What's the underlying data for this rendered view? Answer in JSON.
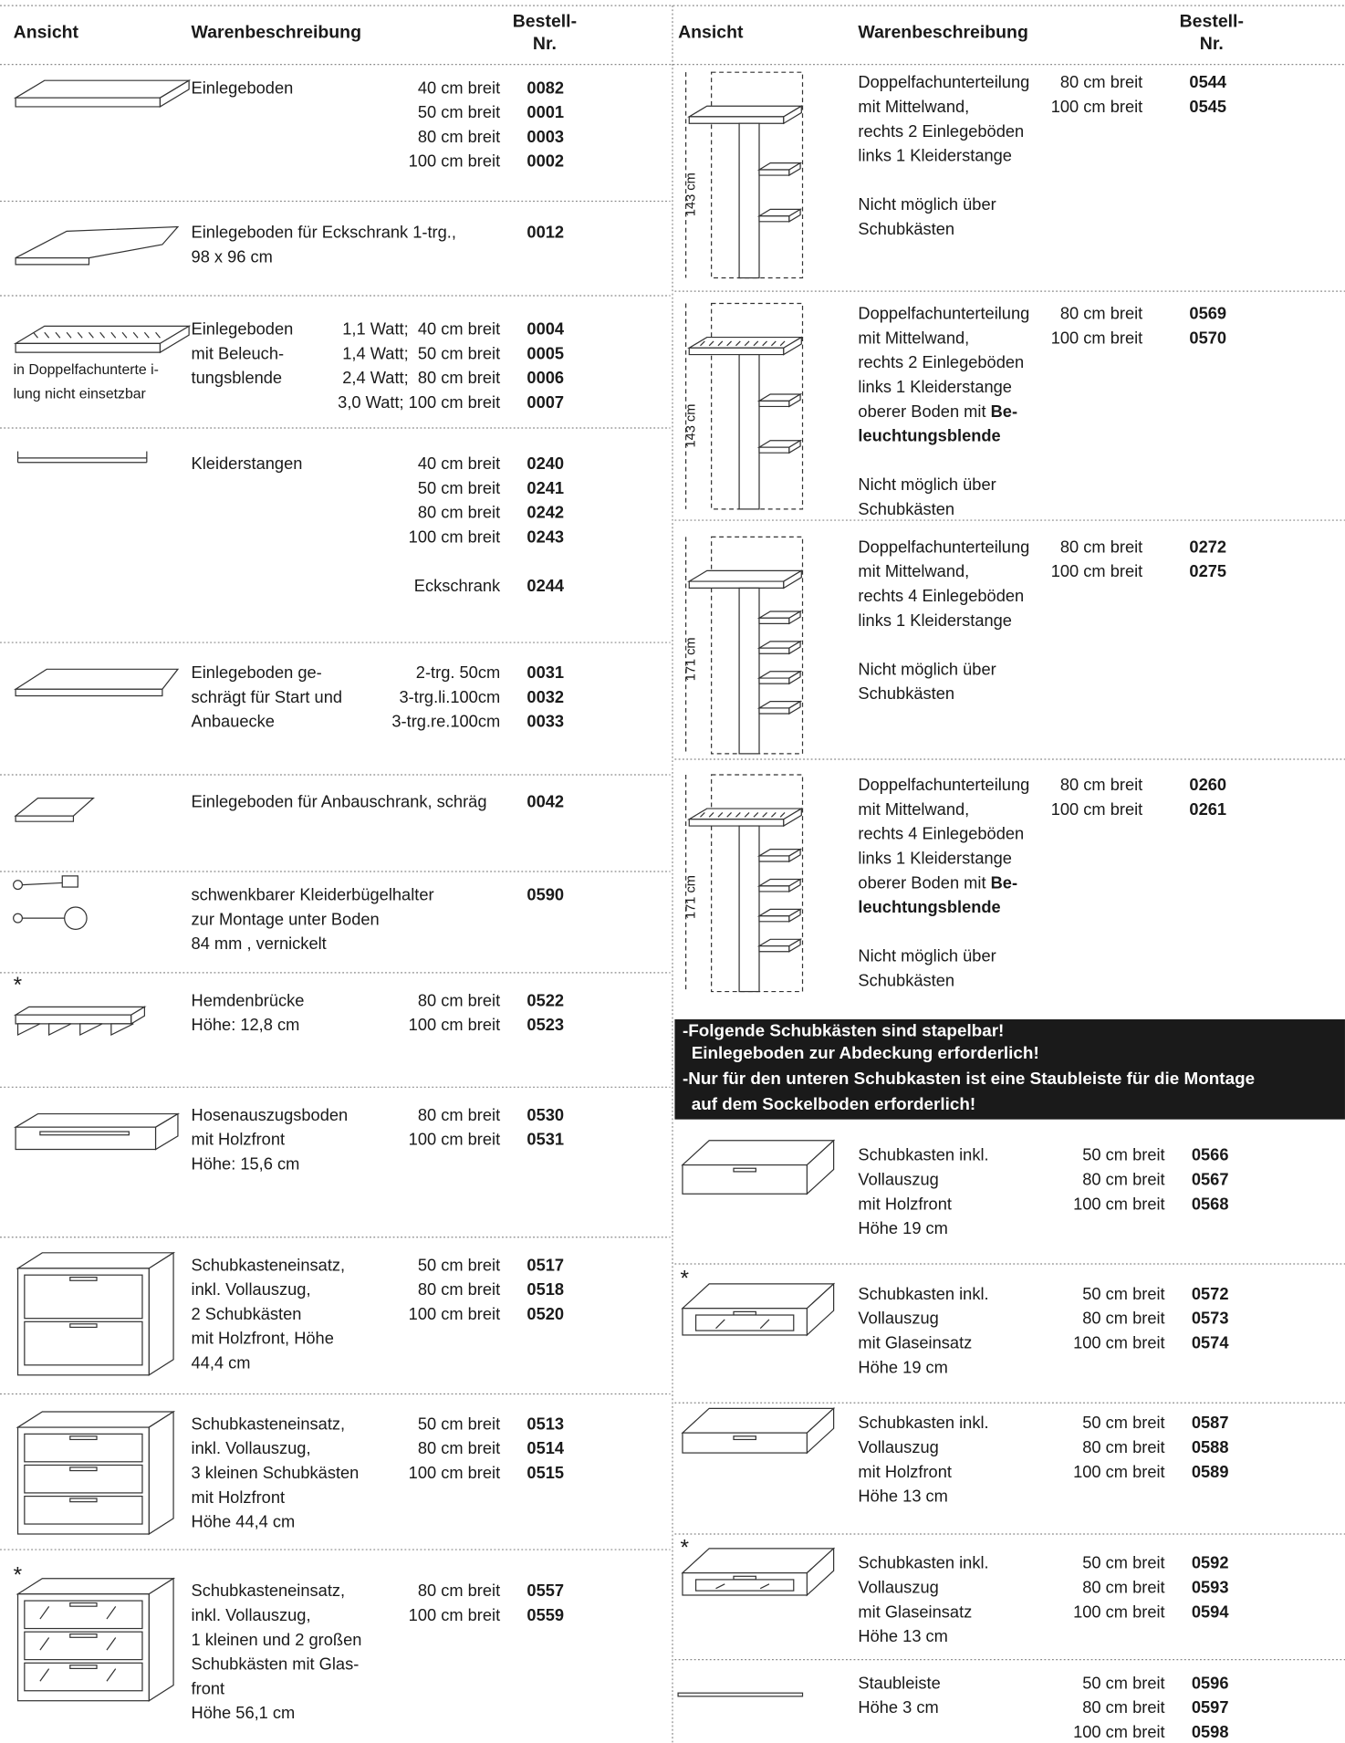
{
  "left": {
    "header": {
      "view": "Ansicht",
      "desc": "Warenbeschreibung",
      "order": [
        "Bestell-",
        "Nr."
      ]
    },
    "rows": [
      {
        "desc": [
          "Einlegeboden"
        ],
        "sizes": [
          "40 cm breit",
          "50 cm breit",
          "80 cm breit",
          "100 cm breit"
        ],
        "numbers": [
          "0082",
          "0001",
          "0003",
          "0002"
        ]
      },
      {
        "desc": [
          "Einlegeboden für Eckschrank 1-trg.,",
          "98 x 96 cm"
        ],
        "numbers": [
          "0012"
        ]
      },
      {
        "desc": [
          "Einlegeboden",
          "mit Beleuch-",
          "tungsblende"
        ],
        "sizes": [
          "1,1 Watt;  40 cm breit",
          "1,4 Watt;  50 cm breit",
          "2,4 Watt;  80 cm breit",
          "3,0 Watt; 100 cm breit"
        ],
        "numbers": [
          "0004",
          "0005",
          "0006",
          "0007"
        ],
        "note": [
          "in Doppelfachunterte i-",
          "lung nicht einsetzbar"
        ]
      },
      {
        "desc": [
          "Kleiderstangen"
        ],
        "sizes": [
          "40 cm breit",
          "50 cm breit",
          "80 cm breit",
          "100 cm breit"
        ],
        "numbers": [
          "0240",
          "0241",
          "0242",
          "0243"
        ],
        "extra": {
          "size": "Eckschrank",
          "number": "0244"
        }
      },
      {
        "desc": [
          "Einlegeboden ge-",
          "schrägt für Start und",
          "Anbauecke"
        ],
        "sizes": [
          "2-trg. 50cm",
          "3-trg.li.100cm",
          "3-trg.re.100cm"
        ],
        "numbers": [
          "0031",
          "0032",
          "0033"
        ]
      },
      {
        "desc": [
          "Einlegeboden für Anbauschrank, schräg"
        ],
        "numbers": [
          "0042"
        ]
      },
      {
        "desc": [
          "schwenkbarer Kleiderbügelhalter",
          "zur Montage unter Boden",
          "84 mm , vernickelt"
        ],
        "numbers": [
          "0590"
        ]
      },
      {
        "star": "*",
        "desc": [
          "Hemdenbrücke",
          "Höhe: 12,8 cm"
        ],
        "sizes": [
          "80 cm breit",
          "100 cm breit"
        ],
        "numbers": [
          "0522",
          "0523"
        ]
      },
      {
        "desc": [
          "Hosenauszugsboden",
          "mit Holzfront",
          "Höhe: 15,6 cm"
        ],
        "sizes": [
          "80 cm breit",
          "100 cm breit"
        ],
        "numbers": [
          "0530",
          "0531"
        ]
      },
      {
        "desc": [
          "Schubkasteneinsatz,",
          "inkl. Vollauszug,",
          "2 Schubkästen",
          "mit Holzfront, Höhe",
          "44,4 cm"
        ],
        "sizes": [
          "50 cm breit",
          "80 cm breit",
          "100 cm breit"
        ],
        "numbers": [
          "0517",
          "0518",
          "0520"
        ]
      },
      {
        "desc": [
          "Schubkasteneinsatz,",
          "inkl. Vollauszug,",
          "3 kleinen Schubkästen",
          "mit Holzfront",
          "Höhe 44,4 cm"
        ],
        "sizes": [
          "50 cm breit",
          "80 cm breit",
          "100 cm breit"
        ],
        "numbers": [
          "0513",
          "0514",
          "0515"
        ]
      },
      {
        "star": "*",
        "desc": [
          "Schubkasteneinsatz,",
          "inkl. Vollauszug,",
          "1 kleinen und 2 großen",
          "Schubkästen mit Glas-",
          "front",
          "Höhe 56,1 cm"
        ],
        "sizes": [
          "80 cm breit",
          "100 cm breit"
        ],
        "numbers": [
          "0557",
          "0559"
        ]
      }
    ]
  },
  "right": {
    "header": {
      "view": "Ansicht",
      "desc": "Warenbeschreibung",
      "order": [
        "Bestell-",
        "Nr."
      ]
    },
    "rows": [
      {
        "dim": "143 cm",
        "desc": [
          "Doppelfachunterteilung",
          "mit Mittelwand,",
          "rechts 2 Einlegeböden",
          "links 1 Kleiderstange"
        ],
        "desc2": [
          "Nicht möglich über",
          "Schubkästen"
        ],
        "sizes": [
          "80 cm breit",
          "100 cm breit"
        ],
        "numbers": [
          "0544",
          "0545"
        ]
      },
      {
        "dim": "143 cm",
        "desc": [
          "Doppelfachunterteilung",
          "mit Mittelwand,",
          "rechts 2 Einlegeböden",
          "links 1 Kleiderstange",
          {
            "text": "oberer Boden mit ",
            "bold": "Be-"
          },
          {
            "bold": "leuchtungsblende"
          }
        ],
        "desc2": [
          "Nicht möglich über",
          "Schubkästen"
        ],
        "sizes": [
          "80 cm breit",
          "100 cm breit"
        ],
        "numbers": [
          "0569",
          "0570"
        ]
      },
      {
        "dim": "171 cm",
        "desc": [
          "Doppelfachunterteilung",
          "mit Mittelwand,",
          "rechts 4 Einlegeböden",
          "links 1 Kleiderstange"
        ],
        "desc2": [
          "Nicht möglich über",
          "Schubkästen"
        ],
        "sizes": [
          "80 cm breit",
          "100 cm breit"
        ],
        "numbers": [
          "0272",
          "0275"
        ]
      },
      {
        "dim": "171 cm",
        "desc": [
          "Doppelfachunterteilung",
          "mit Mittelwand,",
          "rechts 4 Einlegeböden",
          "links 1 Kleiderstange",
          {
            "text": "oberer Boden mit ",
            "bold": "Be-"
          },
          {
            "bold": "leuchtungsblende"
          }
        ],
        "desc2": [
          "Nicht möglich über",
          "Schubkästen"
        ],
        "sizes": [
          "80 cm breit",
          "100 cm breit"
        ],
        "numbers": [
          "0260",
          "0261"
        ]
      },
      {
        "desc": [
          "Schubkasten inkl.",
          "Vollauszug",
          "mit Holzfront",
          "Höhe 19 cm"
        ],
        "sizes": [
          "50 cm breit",
          "80 cm breit",
          "100 cm breit"
        ],
        "numbers": [
          "0566",
          "0567",
          "0568"
        ]
      },
      {
        "star": "*",
        "desc": [
          "Schubkasten inkl.",
          "Vollauszug",
          "mit Glaseinsatz",
          "Höhe 19 cm"
        ],
        "sizes": [
          "50 cm breit",
          "80 cm breit",
          "100 cm breit"
        ],
        "numbers": [
          "0572",
          "0573",
          "0574"
        ]
      },
      {
        "desc": [
          "Schubkasten inkl.",
          "Vollauszug",
          "mit Holzfront",
          "Höhe 13 cm"
        ],
        "sizes": [
          "50 cm breit",
          "80 cm breit",
          "100 cm breit"
        ],
        "numbers": [
          "0587",
          "0588",
          "0589"
        ]
      },
      {
        "star": "*",
        "desc": [
          "Schubkasten inkl.",
          "Vollauszug",
          "mit Glaseinsatz",
          "Höhe 13 cm"
        ],
        "sizes": [
          "50 cm breit",
          "80 cm breit",
          "100 cm breit"
        ],
        "numbers": [
          "0592",
          "0593",
          "0594"
        ]
      },
      {
        "desc": [
          "Staubleiste",
          "Höhe 3 cm"
        ],
        "sizes": [
          "50 cm breit",
          "80 cm breit",
          "100 cm breit"
        ],
        "numbers": [
          "0596",
          "0597",
          "0598"
        ]
      }
    ],
    "banner": [
      "-Folgende Schubkästen sind stapelbar!",
      "Einlegeboden zur Abdeckung erforderlich!",
      "-Nur für den unteren Schubkasten ist eine Staubleiste für die Montage",
      "auf dem Sockelboden erforderlich!"
    ]
  }
}
